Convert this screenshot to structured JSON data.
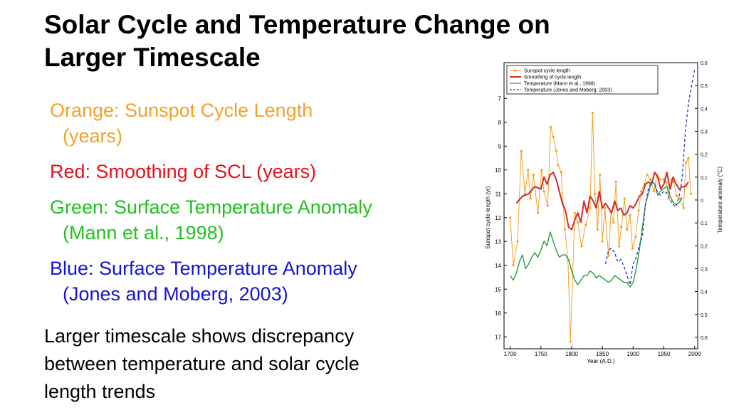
{
  "slide": {
    "title_lines": [
      "Solar Cycle and Temperature Change on",
      "Larger Timescale"
    ],
    "bullets": [
      {
        "lines": [
          "Orange: Sunspot Cycle Length",
          "(years)"
        ],
        "color": "#f4a027"
      },
      {
        "lines": [
          "Red: Smoothing of SCL (years)"
        ],
        "color": "#e8101a"
      },
      {
        "lines": [
          "Green: Surface Temperature Anomaly",
          "(Mann et al., 1998)"
        ],
        "color": "#22c022"
      },
      {
        "lines": [
          "Blue: Surface Temperature Anomaly",
          "(Jones and Moberg, 2003)"
        ],
        "color": "#1414d2"
      }
    ],
    "conclusion_lines": [
      "Larger timescale shows discrepancy",
      "between temperature and solar cycle",
      "length trends"
    ]
  },
  "chart_data": {
    "type": "line",
    "xlabel": "Year  (A.D.)",
    "ylabel_left": "Sunspot  cycle  length  (yr)",
    "ylabel_right": "Temperature  anomaly  (°C)",
    "xlim": [
      1690,
      2005
    ],
    "x_ticks": [
      "1700",
      "1750",
      "1800",
      "1850",
      "1900",
      "1950",
      "2000"
    ],
    "y_left_range_inverted": [
      17.5,
      5.5
    ],
    "y_left_ticks": [
      "7",
      "8",
      "9",
      "10",
      "11",
      "12",
      "13",
      "14",
      "15",
      "16",
      "17"
    ],
    "y_right_range": [
      -0.65,
      0.6
    ],
    "y_right_ticks": [
      "0,6",
      "0,5",
      "0,4",
      "0,3",
      "0,2",
      "0,1",
      "0",
      "0,1",
      "0,2",
      "0,3",
      "0,4",
      "0,5",
      "0,6"
    ],
    "legend_position": "top-left",
    "series": [
      {
        "name": "Sunspot  cycle  length",
        "axis": "left",
        "color": "#f4a027",
        "markers": true,
        "x": [
          1700,
          1705,
          1712,
          1718,
          1724,
          1729,
          1733,
          1738,
          1745,
          1751,
          1755,
          1761,
          1766,
          1770,
          1775,
          1778,
          1783,
          1789,
          1794,
          1798,
          1805,
          1810,
          1816,
          1823,
          1830,
          1834,
          1838,
          1842,
          1846,
          1850,
          1854,
          1860,
          1864,
          1868,
          1872,
          1877,
          1881,
          1886,
          1890,
          1895,
          1899,
          1904,
          1909,
          1913,
          1918,
          1923,
          1928,
          1934,
          1939,
          1944,
          1950,
          1954,
          1958,
          1962,
          1966,
          1971,
          1976,
          1982,
          1986,
          1990,
          1994
        ],
        "y": [
          12,
          14,
          13,
          9.2,
          11,
          10,
          11.2,
          10.2,
          11.8,
          10,
          10.9,
          11.5,
          8.2,
          8.6,
          9.2,
          9.8,
          10.1,
          12.5,
          13.8,
          17.2,
          11.8,
          12.2,
          13.2,
          12.3,
          11.6,
          7.6,
          11,
          12.5,
          10.2,
          13,
          11.6,
          13.6,
          11.8,
          12.2,
          10.5,
          13.2,
          12.4,
          11.2,
          12.5,
          11.9,
          13.3,
          12.8,
          11.7,
          10.9,
          10.6,
          10.2,
          10.4,
          10.9,
          10.2,
          10.4,
          10.4,
          10.5,
          11.2,
          10.4,
          10.5,
          11.1,
          11.2,
          11.6,
          9.7,
          9.5,
          11
        ],
        "legend_marker": "dot"
      },
      {
        "name": "Smoothing  of  cycle  length",
        "axis": "left",
        "color": "#d42a2a",
        "x": [
          1710,
          1720,
          1730,
          1740,
          1750,
          1755,
          1760,
          1765,
          1770,
          1775,
          1780,
          1785,
          1790,
          1795,
          1800,
          1805,
          1810,
          1815,
          1820,
          1825,
          1830,
          1835,
          1840,
          1845,
          1850,
          1855,
          1860,
          1865,
          1870,
          1875,
          1880,
          1885,
          1890,
          1895,
          1900,
          1905,
          1910,
          1915,
          1920,
          1925,
          1930,
          1935,
          1940,
          1945,
          1950,
          1955,
          1960,
          1965,
          1970,
          1975,
          1980,
          1985,
          1990
        ],
        "y": [
          11.4,
          11.1,
          11,
          10.7,
          10.8,
          10.3,
          10.6,
          10.2,
          10.1,
          10.4,
          10.9,
          11.4,
          11.7,
          12.4,
          12.5,
          12.1,
          11.8,
          12.2,
          11.3,
          11.8,
          11.1,
          11.3,
          11.6,
          10.9,
          11.6,
          11.4,
          11.6,
          11.8,
          11.3,
          11.7,
          11.6,
          11.9,
          11.8,
          11.5,
          11.6,
          11.4,
          11.1,
          11,
          10.6,
          10.5,
          10.6,
          10.1,
          10.3,
          10.8,
          10.6,
          10.1,
          10.8,
          10.3,
          10.6,
          10.8,
          10.7,
          10.7,
          10.5
        ]
      },
      {
        "name": "Temperature  (Mann  et  al.,  1998)",
        "axis": "right",
        "color": "#1e9e3c",
        "x": [
          1700,
          1705,
          1710,
          1715,
          1720,
          1725,
          1730,
          1735,
          1740,
          1745,
          1750,
          1755,
          1760,
          1765,
          1770,
          1775,
          1780,
          1785,
          1790,
          1795,
          1800,
          1805,
          1810,
          1815,
          1820,
          1825,
          1830,
          1835,
          1840,
          1845,
          1850,
          1855,
          1860,
          1865,
          1870,
          1875,
          1880,
          1885,
          1890,
          1895,
          1900,
          1905,
          1910,
          1915,
          1920,
          1925,
          1930,
          1935,
          1940,
          1945,
          1950,
          1955,
          1960,
          1965,
          1970,
          1975,
          1980
        ],
        "y": [
          -0.33,
          -0.35,
          -0.32,
          -0.27,
          -0.24,
          -0.3,
          -0.28,
          -0.25,
          -0.23,
          -0.25,
          -0.22,
          -0.18,
          -0.2,
          -0.14,
          -0.18,
          -0.22,
          -0.25,
          -0.24,
          -0.24,
          -0.26,
          -0.31,
          -0.35,
          -0.37,
          -0.35,
          -0.33,
          -0.33,
          -0.31,
          -0.32,
          -0.34,
          -0.33,
          -0.34,
          -0.35,
          -0.36,
          -0.35,
          -0.33,
          -0.34,
          -0.35,
          -0.36,
          -0.36,
          -0.38,
          -0.36,
          -0.3,
          -0.22,
          -0.12,
          -0.02,
          0.03,
          0.08,
          0.07,
          0.02,
          0.04,
          0.05,
          0.06,
          0.02,
          -0.01,
          -0.02,
          -0.01,
          0.01
        ]
      },
      {
        "name": "Temperature  (Jones  and  Moberg,  2003)",
        "axis": "right",
        "color": "#3c3cbe",
        "x": [
          1855,
          1860,
          1865,
          1870,
          1875,
          1880,
          1885,
          1890,
          1895,
          1900,
          1905,
          1910,
          1915,
          1920,
          1925,
          1930,
          1935,
          1940,
          1945,
          1950,
          1955,
          1960,
          1965,
          1970,
          1975,
          1980,
          1985,
          1990,
          1995,
          2000
        ],
        "y": [
          -0.28,
          -0.22,
          -0.21,
          -0.23,
          -0.27,
          -0.26,
          -0.29,
          -0.33,
          -0.37,
          -0.28,
          -0.25,
          -0.2,
          -0.16,
          -0.02,
          0.05,
          0.08,
          0.07,
          0.03,
          0.02,
          0.04,
          0.03,
          0,
          -0.02,
          -0.03,
          0.02,
          0.1,
          0.3,
          0.42,
          0.5,
          0.57
        ]
      }
    ]
  }
}
